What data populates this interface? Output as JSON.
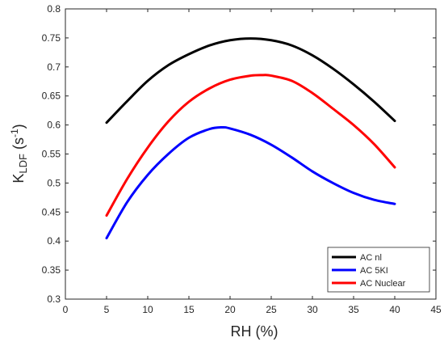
{
  "chart_data": {
    "type": "line",
    "xlabel": "RH (%)",
    "ylabel": {
      "main": "K",
      "subscript": "LDF",
      "unit_open": " (s",
      "unit_sup": "-1",
      "unit_close": ")"
    },
    "xlim": [
      0,
      45
    ],
    "ylim": [
      0.3,
      0.8
    ],
    "xticks": [
      0,
      5,
      10,
      15,
      20,
      25,
      30,
      35,
      40,
      45
    ],
    "yticks": [
      0.3,
      0.35,
      0.4,
      0.45,
      0.5,
      0.55,
      0.6,
      0.65,
      0.7,
      0.75,
      0.8
    ],
    "xtick_labels": [
      "0",
      "5",
      "10",
      "15",
      "20",
      "25",
      "30",
      "35",
      "40",
      "45"
    ],
    "ytick_labels": [
      "0.3",
      "0.35",
      "0.4",
      "0.45",
      "0.5",
      "0.55",
      "0.6",
      "0.65",
      "0.7",
      "0.75",
      "0.8"
    ],
    "grid": false,
    "legend_position": "bottom-right",
    "series": [
      {
        "name": "AC nl",
        "color": "#000000",
        "x": [
          5,
          7.5,
          10,
          12.5,
          15,
          17.5,
          20,
          22.5,
          25,
          27.5,
          30,
          32.5,
          35,
          37.5,
          40
        ],
        "y": [
          0.604,
          0.641,
          0.676,
          0.703,
          0.722,
          0.737,
          0.746,
          0.749,
          0.746,
          0.737,
          0.72,
          0.697,
          0.67,
          0.64,
          0.607
        ]
      },
      {
        "name": "AC 5KI",
        "color": "#0000ff",
        "x": [
          5,
          7.5,
          10,
          12.5,
          15,
          17.5,
          19,
          20,
          22.5,
          25,
          27.5,
          30,
          32.5,
          35,
          37.5,
          40
        ],
        "y": [
          0.405,
          0.467,
          0.514,
          0.55,
          0.578,
          0.593,
          0.596,
          0.594,
          0.583,
          0.566,
          0.544,
          0.52,
          0.5,
          0.483,
          0.471,
          0.464
        ]
      },
      {
        "name": "AC Nuclear",
        "color": "#ff0000",
        "x": [
          5,
          7.5,
          10,
          12.5,
          15,
          17.5,
          20,
          22.5,
          24,
          25,
          27.5,
          30,
          32.5,
          35,
          37.5,
          40
        ],
        "y": [
          0.444,
          0.507,
          0.561,
          0.606,
          0.64,
          0.663,
          0.678,
          0.685,
          0.686,
          0.685,
          0.676,
          0.655,
          0.628,
          0.6,
          0.567,
          0.527
        ]
      }
    ]
  }
}
